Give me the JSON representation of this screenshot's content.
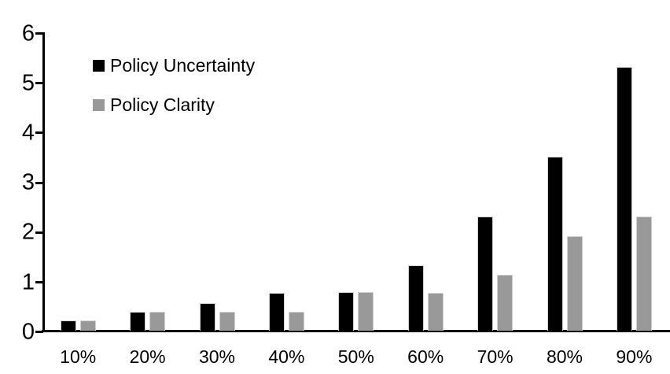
{
  "chart_data": {
    "type": "bar",
    "categories": [
      "10%",
      "20%",
      "30%",
      "40%",
      "50%",
      "60%",
      "70%",
      "80%",
      "90%"
    ],
    "series": [
      {
        "name": "Policy Uncertainty",
        "color": "#000000",
        "values": [
          0.2,
          0.38,
          0.55,
          0.76,
          0.78,
          1.32,
          2.3,
          3.5,
          5.3
        ]
      },
      {
        "name": "Policy Clarity",
        "color": "#999999",
        "values": [
          0.2,
          0.38,
          0.38,
          0.38,
          0.78,
          0.76,
          1.13,
          1.9,
          2.3
        ]
      }
    ],
    "xlabel": "",
    "ylabel": "",
    "ylim": [
      0,
      6
    ],
    "yticks": [
      0,
      1,
      2,
      3,
      4,
      5,
      6
    ],
    "grid": false,
    "legend_position": "top-left-inside",
    "background": "#ffffff",
    "axis_color": "#000000"
  }
}
